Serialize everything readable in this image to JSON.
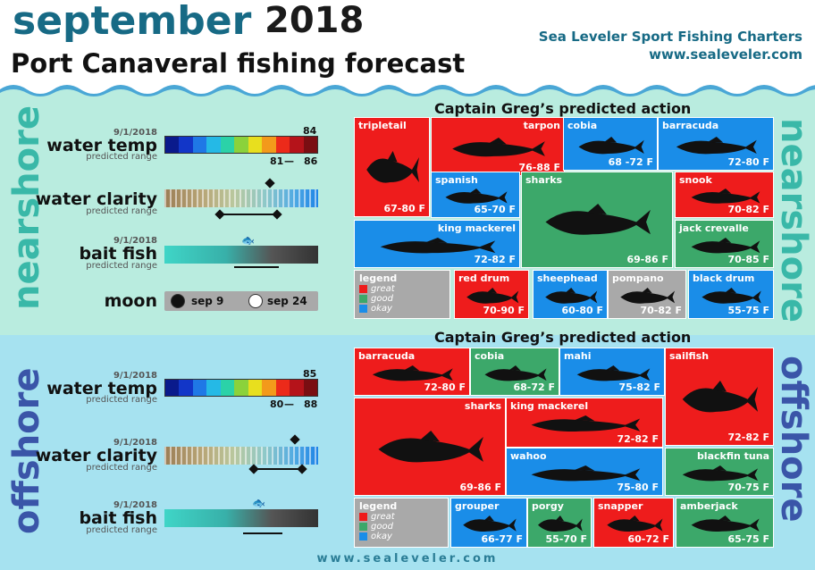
{
  "header": {
    "month": "september",
    "year": "2018",
    "subtitle": "Port Canaveral fishing forecast",
    "brand": "Sea Leveler Sport Fishing Charters",
    "url": "www.sealeveler.com"
  },
  "nearshore": {
    "side_label": "nearshore",
    "water_temp": {
      "date": "9/1/2018",
      "label": "water temp",
      "predicted": "predicted range",
      "current": "84",
      "range_low": "81",
      "range_high": "86",
      "range_sep": "—"
    },
    "water_clarity": {
      "date": "",
      "label": "water clarity",
      "predicted": "predicted range"
    },
    "bait_fish": {
      "date": "9/1/2018",
      "label": "bait fish",
      "predicted": "predicted range"
    },
    "moon": {
      "label": "moon",
      "new_date": "sep 9",
      "full_date": "sep 24"
    },
    "action_title": "Captain Greg’s predicted action",
    "fish": [
      {
        "name": "tripletail",
        "range": "67-80 F",
        "color": "red"
      },
      {
        "name": "tarpon",
        "range": "76-88 F",
        "color": "red"
      },
      {
        "name": "cobia",
        "range": "68 -72 F",
        "color": "blue"
      },
      {
        "name": "barracuda",
        "range": "72-80 F",
        "color": "blue"
      },
      {
        "name": "spanish",
        "range": "65-70 F",
        "color": "blue"
      },
      {
        "name": "sharks",
        "range": "69-86 F",
        "color": "green"
      },
      {
        "name": "snook",
        "range": "70-82 F",
        "color": "red"
      },
      {
        "name": "king mackerel",
        "range": "72-82 F",
        "color": "blue"
      },
      {
        "name": "jack crevalle",
        "range": "70-85 F",
        "color": "green"
      },
      {
        "name": "red drum",
        "range": "70-90 F",
        "color": "red"
      },
      {
        "name": "sheephead",
        "range": "60-80 F",
        "color": "blue"
      },
      {
        "name": "pompano",
        "range": "70-82 F",
        "color": "gray"
      },
      {
        "name": "black drum",
        "range": "55-75 F",
        "color": "blue"
      }
    ],
    "legend": {
      "title": "legend",
      "great": "great",
      "good": "good",
      "okay": "okay"
    }
  },
  "offshore": {
    "side_label": "offshore",
    "water_temp": {
      "date": "9/1/2018",
      "label": "water temp",
      "predicted": "predicted range",
      "current": "85",
      "range_low": "80",
      "range_high": "88",
      "range_sep": "—"
    },
    "water_clarity": {
      "date": "9/1/2018",
      "label": "water clarity",
      "predicted": "predicted range"
    },
    "bait_fish": {
      "date": "9/1/2018",
      "label": "bait fish",
      "predicted": "predicted range"
    },
    "action_title": "Captain Greg’s predicted action",
    "fish": [
      {
        "name": "barracuda",
        "range": "72-80 F",
        "color": "red"
      },
      {
        "name": "cobia",
        "range": "68-72 F",
        "color": "green"
      },
      {
        "name": "mahi",
        "range": "75-82 F",
        "color": "blue"
      },
      {
        "name": "sailfish",
        "range": "72-82 F",
        "color": "red"
      },
      {
        "name": "sharks",
        "range": "69-86 F",
        "color": "red"
      },
      {
        "name": "king mackerel",
        "range": "72-82 F",
        "color": "red"
      },
      {
        "name": "wahoo",
        "range": "75-80 F",
        "color": "blue"
      },
      {
        "name": "blackfin tuna",
        "range": "70-75 F",
        "color": "green"
      },
      {
        "name": "grouper",
        "range": "66-77 F",
        "color": "blue"
      },
      {
        "name": "porgy",
        "range": "55-70 F",
        "color": "green"
      },
      {
        "name": "snapper",
        "range": "60-72 F",
        "color": "red"
      },
      {
        "name": "amberjack",
        "range": "65-75 F",
        "color": "green"
      }
    ],
    "legend": {
      "title": "legend",
      "great": "great",
      "good": "good",
      "okay": "okay"
    }
  },
  "temp_scale_colors": [
    "#0a1a8c",
    "#1236c8",
    "#1f78e6",
    "#25b9e6",
    "#2bd2a8",
    "#8bd23b",
    "#e8df1e",
    "#f39a1b",
    "#ec2a1a",
    "#b5131a",
    "#7a0e12"
  ],
  "legend_colors": {
    "great": "#ee1c1c",
    "good": "#3ca86a",
    "okay": "#1a8de8"
  },
  "footer": "www.sealeveler.com"
}
